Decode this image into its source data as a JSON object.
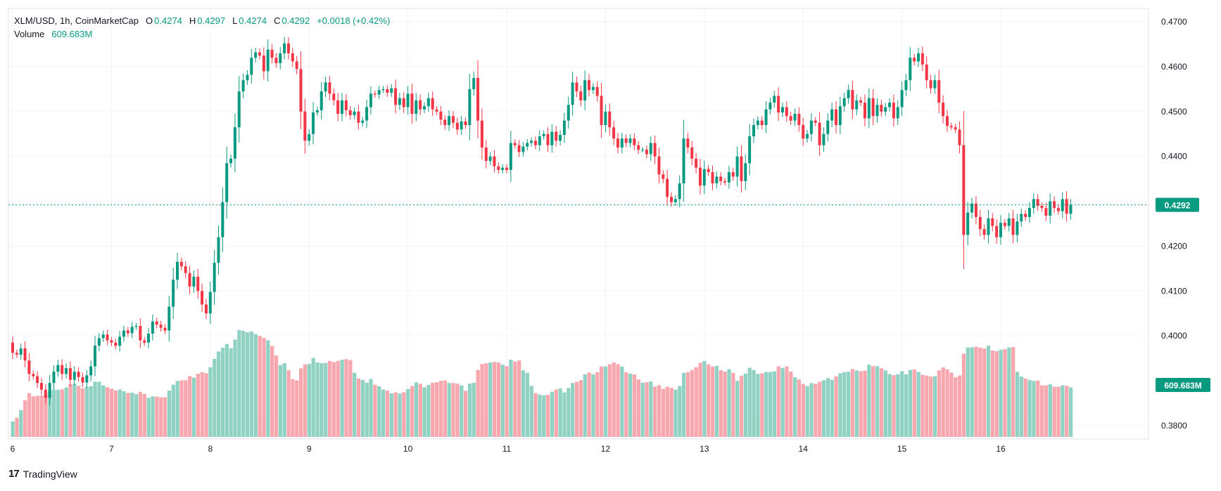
{
  "header": {
    "symbol": "XLM/USD, 1h, CoinMarketCap",
    "o_key": "O",
    "o_val": "0.4274",
    "h_key": "H",
    "h_val": "0.4297",
    "l_key": "L",
    "l_val": "0.4274",
    "c_key": "C",
    "c_val": "0.4292",
    "change": "+0.0018 (+0.42%)",
    "volume_key": "Volume",
    "volume_val": "609.683M"
  },
  "branding": {
    "name": "TradingView",
    "mark": "17"
  },
  "colors": {
    "up": "#089981",
    "down": "#f23645",
    "vol_up": "#8fd1c3",
    "vol_down": "#f7a7ad",
    "grid": "#f0f3fa",
    "axis_text": "#131722"
  },
  "chart_data": {
    "type": "candlestick",
    "symbol": "XLM/USD",
    "interval": "1h",
    "ylim": [
      0.377,
      0.473
    ],
    "y_ticks": [
      "0.4700",
      "0.4600",
      "0.4500",
      "0.4400",
      "0.4300",
      "0.4200",
      "0.4100",
      "0.4000",
      "0.3800"
    ],
    "x_ticks": [
      "6",
      "7",
      "8",
      "9",
      "10",
      "11",
      "12",
      "13",
      "14",
      "15",
      "16"
    ],
    "last_price": "0.4292",
    "last_volume": "609.683M",
    "volume_overlay": true,
    "series": [
      {
        "name": "Close",
        "values": [
          0.3962,
          0.3958,
          0.3972,
          0.3945,
          0.3915,
          0.391,
          0.3895,
          0.388,
          0.3862,
          0.3895,
          0.392,
          0.3935,
          0.3915,
          0.3928,
          0.3902,
          0.392,
          0.3908,
          0.3896,
          0.3912,
          0.3932,
          0.3978,
          0.3995,
          0.4003,
          0.399,
          0.3985,
          0.3978,
          0.3998,
          0.4012,
          0.4006,
          0.402,
          0.4022,
          0.399,
          0.3985,
          0.4005,
          0.4032,
          0.4025,
          0.4018,
          0.4012,
          0.4065,
          0.4125,
          0.4165,
          0.4155,
          0.414,
          0.411,
          0.4132,
          0.41,
          0.407,
          0.405,
          0.4098,
          0.4163,
          0.422,
          0.4298,
          0.4385,
          0.4395,
          0.4465,
          0.4545,
          0.457,
          0.4582,
          0.462,
          0.4632,
          0.4625,
          0.459,
          0.4638,
          0.462,
          0.4608,
          0.463,
          0.4652,
          0.463,
          0.4612,
          0.4595,
          0.45,
          0.4435,
          0.445,
          0.4498,
          0.4503,
          0.4545,
          0.4565,
          0.454,
          0.4525,
          0.4495,
          0.4525,
          0.4503,
          0.4492,
          0.45,
          0.4475,
          0.448,
          0.451,
          0.454,
          0.4538,
          0.4548,
          0.455,
          0.4542,
          0.4552,
          0.4515,
          0.453,
          0.451,
          0.454,
          0.4495,
          0.4525,
          0.4505,
          0.4512,
          0.453,
          0.4505,
          0.45,
          0.4482,
          0.447,
          0.449,
          0.4475,
          0.446,
          0.4478,
          0.447,
          0.455,
          0.4575,
          0.448,
          0.442,
          0.439,
          0.44,
          0.4378,
          0.437,
          0.4375,
          0.437,
          0.443,
          0.4425,
          0.441,
          0.4422,
          0.443,
          0.4435,
          0.4425,
          0.4445,
          0.445,
          0.4425,
          0.4455,
          0.4435,
          0.4448,
          0.448,
          0.4515,
          0.4565,
          0.4545,
          0.4525,
          0.457,
          0.4548,
          0.4555,
          0.4535,
          0.447,
          0.45,
          0.4465,
          0.444,
          0.442,
          0.444,
          0.443,
          0.444,
          0.4425,
          0.4415,
          0.4415,
          0.4405,
          0.443,
          0.44,
          0.436,
          0.435,
          0.431,
          0.4298,
          0.4305,
          0.434,
          0.444,
          0.442,
          0.4395,
          0.4375,
          0.4335,
          0.4372,
          0.4365,
          0.434,
          0.4355,
          0.4345,
          0.4342,
          0.4365,
          0.4355,
          0.44,
          0.4345,
          0.4385,
          0.4445,
          0.447,
          0.448,
          0.447,
          0.4505,
          0.452,
          0.4535,
          0.4498,
          0.451,
          0.449,
          0.448,
          0.4495,
          0.447,
          0.444,
          0.445,
          0.448,
          0.4475,
          0.4425,
          0.445,
          0.448,
          0.4505,
          0.447,
          0.4512,
          0.453,
          0.4548,
          0.4505,
          0.4525,
          0.452,
          0.4485,
          0.453,
          0.449,
          0.4515,
          0.45,
          0.451,
          0.452,
          0.4485,
          0.451,
          0.4548,
          0.457,
          0.462,
          0.4612,
          0.463,
          0.4605,
          0.457,
          0.4552,
          0.457,
          0.452,
          0.449,
          0.4468,
          0.4465,
          0.446,
          0.4425,
          0.4225,
          0.4275,
          0.4295,
          0.4265,
          0.4238,
          0.4225,
          0.4262,
          0.4245,
          0.422,
          0.4252,
          0.4245,
          0.4262,
          0.4225,
          0.4255,
          0.4272,
          0.4265,
          0.4285,
          0.4305,
          0.429,
          0.4285,
          0.4268,
          0.43,
          0.4285,
          0.4278,
          0.4305,
          0.4272,
          0.4292
        ]
      }
    ]
  }
}
